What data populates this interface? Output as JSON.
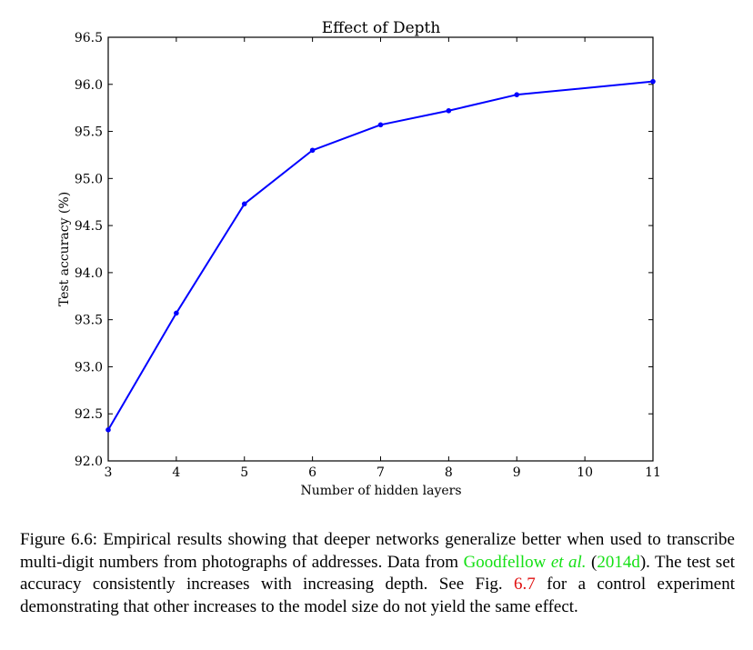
{
  "chart_data": {
    "type": "line",
    "title": "Effect of Depth",
    "xlabel": "Number of hidden layers",
    "ylabel": "Test accuracy (%)",
    "xlim": [
      3,
      11
    ],
    "ylim": [
      92.0,
      96.5
    ],
    "xticks": [
      "3",
      "4",
      "5",
      "6",
      "7",
      "8",
      "9",
      "10",
      "11"
    ],
    "yticks": [
      "92.0",
      "92.5",
      "93.0",
      "93.5",
      "94.0",
      "94.5",
      "95.0",
      "95.5",
      "96.0",
      "96.5"
    ],
    "grid": false,
    "series": [
      {
        "color": "#0000ff",
        "x": [
          3,
          4,
          5,
          6,
          7,
          8,
          9,
          11
        ],
        "values": [
          92.33,
          93.57,
          94.73,
          95.3,
          95.57,
          95.72,
          95.89,
          96.03
        ]
      }
    ]
  },
  "caption": {
    "p1": "Figure 6.6: Empirical results showing that deeper networks generalize better when used to transcribe multi-digit numbers from photographs of addresses. Data from ",
    "cite_author_a": "Goodfellow",
    "cite_author_b": "et al.",
    "p2": " (",
    "cite_year": "2014d",
    "p3": "). The test set accuracy consistently increases with increasing depth. See Fig. ",
    "fig_ref": "6.7",
    "p4": " for a control experiment demonstrating that other increases to the model size do not yield the same effect."
  }
}
